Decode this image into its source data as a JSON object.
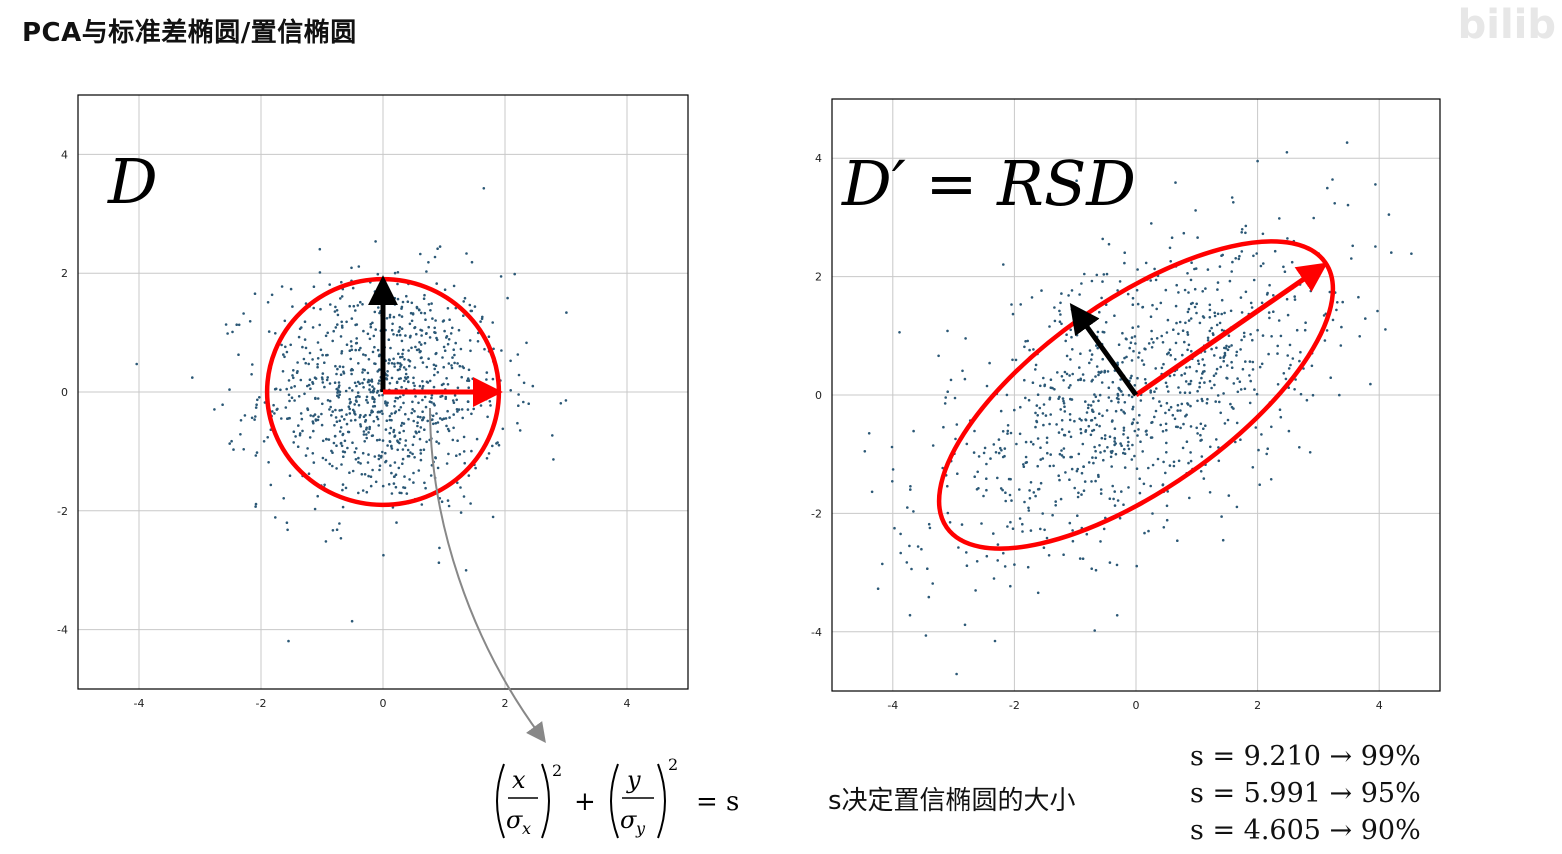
{
  "page_title": "PCA与标准差椭圆/置信椭圆",
  "watermark": "bilib",
  "chart_data": [
    {
      "type": "scatter",
      "label": "D",
      "xlim": [
        -5,
        5
      ],
      "ylim": [
        -5,
        5
      ],
      "xticks": [
        "-4",
        "-2",
        "0",
        "2",
        "4"
      ],
      "yticks": [
        "4",
        "2",
        "0",
        "-2",
        "-4"
      ],
      "grid": true,
      "point_count": 1000,
      "points_std": [
        1,
        1
      ],
      "ellipse": {
        "center": [
          0,
          0
        ],
        "rx": 1.9,
        "ry": 1.9,
        "angle_deg": 0,
        "color": "#ff0000"
      },
      "vectors": [
        {
          "from": [
            0,
            0
          ],
          "to": [
            0,
            1.9
          ],
          "color": "#000000"
        },
        {
          "from": [
            0,
            0
          ],
          "to": [
            1.9,
            0
          ],
          "color": "#ff0000"
        }
      ]
    },
    {
      "type": "scatter",
      "label": "D′ = RSD",
      "xlim": [
        -5,
        5
      ],
      "ylim": [
        -5,
        5
      ],
      "xticks": [
        "-4",
        "-2",
        "0",
        "2",
        "4"
      ],
      "yticks": [
        "4",
        "2",
        "0",
        "-2",
        "-4"
      ],
      "grid": true,
      "point_count": 1000,
      "points_std": [
        2,
        1
      ],
      "rotation_deg": 35,
      "ellipse": {
        "center": [
          0,
          0
        ],
        "rx": 3.8,
        "ry": 1.6,
        "angle_deg": 35,
        "color": "#ff0000"
      },
      "vectors": [
        {
          "from": [
            0,
            0
          ],
          "to": [
            3.1,
            2.2
          ],
          "color": "#ff0000"
        },
        {
          "from": [
            0,
            0
          ],
          "to": [
            -1.05,
            1.5
          ],
          "color": "#000000"
        }
      ]
    }
  ],
  "formula": {
    "x": "x",
    "sigma_x": "σ",
    "sub_x": "x",
    "y": "y",
    "sigma_y": "σ",
    "sub_y": "y",
    "exp": "2",
    "plus": "+",
    "equals": "= s"
  },
  "s_note": "s决定置信椭圆的大小",
  "confidence_levels": [
    "s = 9.210 → 99%",
    "s = 5.991 → 95%",
    "s = 4.605 → 90%"
  ],
  "colors": {
    "ellipse": "#ff0000",
    "point": "#2b5876",
    "grid": "#c8c8c8",
    "arrow_black": "#000000",
    "arrow_red": "#ff0000"
  }
}
